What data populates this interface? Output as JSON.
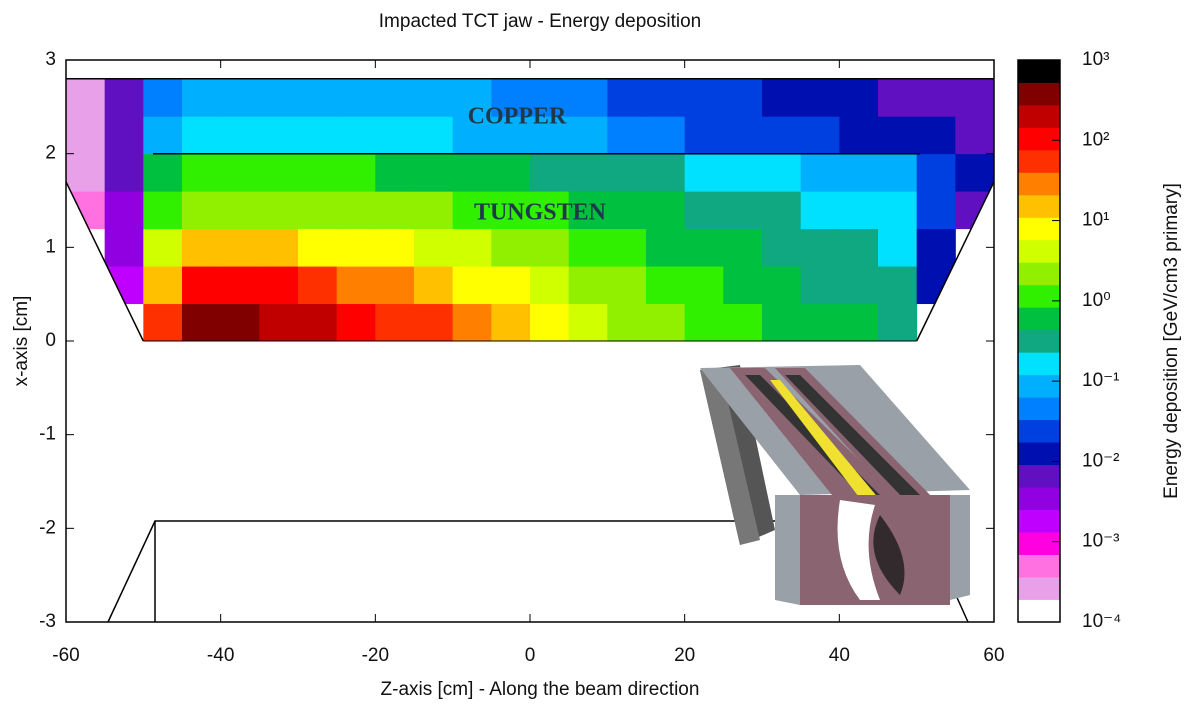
{
  "chart_data": {
    "type": "heatmap",
    "title": "Impacted TCT jaw - Energy deposition",
    "xlabel": "Z-axis [cm] - Along the beam direction",
    "ylabel": "x-axis [cm]",
    "colorbar_label": "Energy deposition [GeV/cm3 primary]",
    "annotations": [
      "COPPER",
      "TUNGSTEN"
    ],
    "xlim": [
      -60,
      60
    ],
    "ylim": [
      -3,
      3
    ],
    "xticks": [
      -60,
      -40,
      -20,
      0,
      20,
      40,
      60
    ],
    "yticks": [
      -3,
      -2,
      -1,
      0,
      1,
      2,
      3
    ],
    "x": [
      -57.5,
      -52.5,
      -47.5,
      -42.5,
      -37.5,
      -32.5,
      -27.5,
      -22.5,
      -17.5,
      -12.5,
      -7.5,
      -2.5,
      2.5,
      7.5,
      12.5,
      17.5,
      22.5,
      27.5,
      32.5,
      37.5,
      42.5,
      47.5,
      52.5,
      57.5
    ],
    "y": [
      0.2,
      0.6,
      1.0,
      1.4,
      1.8,
      2.2,
      2.6
    ],
    "z": [
      [
        null,
        null,
        50,
        300,
        300,
        200,
        150,
        100,
        60,
        40,
        25,
        15,
        8,
        5,
        3,
        2,
        1.5,
        1,
        0.8,
        0.6,
        0.5,
        0.4,
        null,
        null
      ],
      [
        null,
        0.002,
        20,
        100,
        100,
        80,
        50,
        35,
        25,
        15,
        10,
        6,
        4,
        3,
        2,
        1.3,
        1,
        0.7,
        0.5,
        0.4,
        0.3,
        0.25,
        0.01,
        null
      ],
      [
        null,
        0.003,
        5,
        15,
        15,
        12,
        10,
        8,
        6,
        5,
        3.5,
        2.5,
        2,
        1.5,
        1.1,
        0.8,
        0.6,
        0.45,
        0.35,
        0.3,
        0.25,
        0.2,
        0.015,
        null
      ],
      [
        0.0005,
        0.004,
        1.5,
        3,
        3,
        2.8,
        2.5,
        2.2,
        2,
        1.6,
        1.3,
        1.1,
        0.9,
        0.7,
        0.55,
        0.45,
        0.35,
        0.3,
        0.25,
        0.2,
        0.18,
        0.15,
        0.02,
        0.008
      ],
      [
        0.0003,
        0.005,
        0.5,
        0.9,
        1,
        1,
        1,
        0.9,
        0.8,
        0.7,
        0.6,
        0.5,
        0.4,
        0.35,
        0.3,
        0.25,
        0.2,
        0.18,
        0.15,
        0.12,
        0.1,
        0.08,
        0.02,
        0.01
      ],
      [
        0.0002,
        0.006,
        0.1,
        0.15,
        0.2,
        0.2,
        0.2,
        0.18,
        0.15,
        0.13,
        0.11,
        0.1,
        0.08,
        0.07,
        0.05,
        0.04,
        0.03,
        0.025,
        0.02,
        0.018,
        0.015,
        0.012,
        0.01,
        0.008
      ],
      [
        0.0002,
        0.005,
        0.05,
        0.08,
        0.1,
        0.1,
        0.1,
        0.1,
        0.09,
        0.08,
        0.07,
        0.06,
        0.05,
        0.04,
        0.03,
        0.025,
        0.02,
        0.018,
        0.015,
        0.012,
        0.01,
        0.008,
        0.006,
        0.005
      ]
    ],
    "zlim": [
      0.0001,
      1000
    ],
    "zscale": "log",
    "zticks": [
      {
        "value": 1000,
        "label": "10³"
      },
      {
        "value": 100,
        "label": "10²"
      },
      {
        "value": 10,
        "label": "10¹"
      },
      {
        "value": 1,
        "label": "10⁰"
      },
      {
        "value": 0.1,
        "label": "10⁻¹"
      },
      {
        "value": 0.01,
        "label": "10⁻²"
      },
      {
        "value": 0.001,
        "label": "10⁻³"
      },
      {
        "value": 0.0001,
        "label": "10⁻⁴"
      }
    ],
    "colors": [
      "#ffffff",
      "#e8a0e8",
      "#ff70e0",
      "#ff00e0",
      "#c000ff",
      "#9000e0",
      "#6010c0",
      "#0010b0",
      "#0040e0",
      "#0080ff",
      "#00b0ff",
      "#00e0ff",
      "#10a880",
      "#00c040",
      "#30f000",
      "#90f000",
      "#d0ff00",
      "#ffff00",
      "#ffc000",
      "#ff8000",
      "#ff3000",
      "#ff0000",
      "#c00000",
      "#800000",
      "#000000"
    ]
  }
}
